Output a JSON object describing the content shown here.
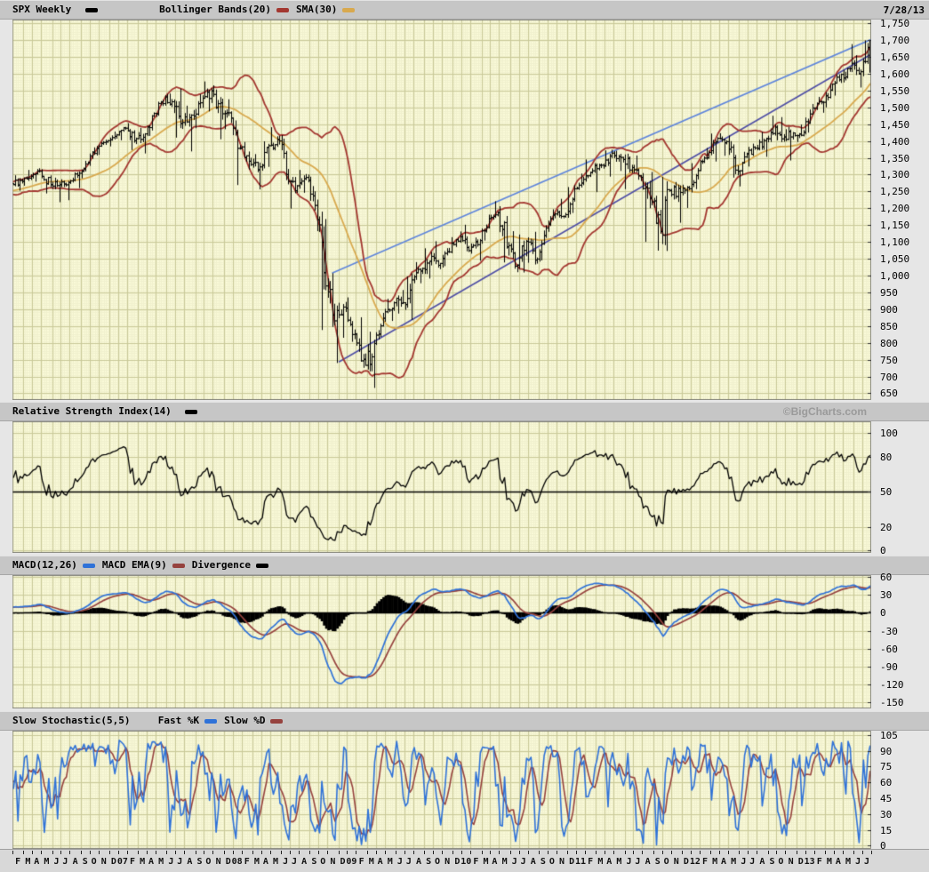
{
  "app": {
    "date_label": "7/28/13",
    "watermark": "©BigCharts.com"
  },
  "panel_headers": {
    "price": {
      "title": "SPX Weekly",
      "title_swatch_color": "#000000",
      "legend": [
        {
          "label": "Bollinger Bands(20)",
          "color": "#A33730"
        },
        {
          "label": "SMA(30)",
          "color": "#D8A94E"
        }
      ]
    },
    "rsi": {
      "title": "Relative Strength Index(14)",
      "swatch_color": "#000000"
    },
    "macd": {
      "legend": [
        {
          "label": "MACD(12,26)",
          "color": "#2F72D8"
        },
        {
          "label": "MACD EMA(9)",
          "color": "#96423E"
        },
        {
          "label": "Divergence",
          "color": "#000000"
        }
      ]
    },
    "stoch": {
      "title": "Slow Stochastic(5,5)",
      "legend": [
        {
          "label": "Fast %K",
          "color": "#2F72D8"
        },
        {
          "label": "Slow %D",
          "color": "#96423E"
        }
      ]
    }
  },
  "chart_data": [
    {
      "type": "ohlc",
      "panel": "price",
      "title": "SPX Weekly",
      "interval": "weekly",
      "ylim": [
        630,
        1761
      ],
      "yticks": [
        1750,
        1700,
        1650,
        1600,
        1550,
        1500,
        1450,
        1400,
        1350,
        1300,
        1250,
        1200,
        1150,
        1100,
        1050,
        1000,
        950,
        900,
        850,
        800,
        750,
        700,
        650
      ],
      "categories": [
        "F",
        "M",
        "A",
        "M",
        "J",
        "J",
        "A",
        "S",
        "O",
        "N",
        "D",
        "07",
        "F",
        "M",
        "A",
        "M",
        "J",
        "J",
        "A",
        "S",
        "O",
        "N",
        "D",
        "08",
        "F",
        "M",
        "A",
        "M",
        "J",
        "J",
        "A",
        "S",
        "O",
        "N",
        "D",
        "09",
        "F",
        "M",
        "A",
        "M",
        "J",
        "J",
        "A",
        "S",
        "O",
        "N",
        "D",
        "10",
        "F",
        "M",
        "A",
        "M",
        "J",
        "J",
        "A",
        "S",
        "O",
        "N",
        "D",
        "11",
        "F",
        "M",
        "A",
        "M",
        "J",
        "J",
        "A",
        "S",
        "O",
        "N",
        "D",
        "12",
        "F",
        "M",
        "A",
        "M",
        "J",
        "J",
        "A",
        "S",
        "O",
        "N",
        "D",
        "13",
        "F",
        "M",
        "A",
        "M",
        "J",
        "J"
      ],
      "monthly": {
        "close": [
          1280,
          1295,
          1310,
          1270,
          1270,
          1277,
          1304,
          1336,
          1378,
          1401,
          1418,
          1438,
          1407,
          1421,
          1482,
          1531,
          1503,
          1455,
          1474,
          1527,
          1549,
          1481,
          1468,
          1378,
          1330,
          1323,
          1386,
          1400,
          1280,
          1267,
          1283,
          1166,
          969,
          896,
          903,
          826,
          733,
          798,
          873,
          919,
          919,
          987,
          1021,
          1057,
          1036,
          1096,
          1115,
          1074,
          1104,
          1169,
          1187,
          1089,
          1031,
          1102,
          1049,
          1141,
          1183,
          1181,
          1258,
          1286,
          1327,
          1326,
          1364,
          1345,
          1321,
          1292,
          1219,
          1131,
          1253,
          1247,
          1258,
          1312,
          1366,
          1408,
          1398,
          1310,
          1362,
          1379,
          1407,
          1441,
          1412,
          1416,
          1426,
          1498,
          1515,
          1569,
          1598,
          1631,
          1606,
          1691
        ],
        "high": [
          1297,
          1313,
          1318,
          1315,
          1290,
          1281,
          1306,
          1340,
          1380,
          1403,
          1427,
          1441,
          1452,
          1438,
          1484,
          1535,
          1540,
          1555,
          1504,
          1538,
          1576,
          1552,
          1523,
          1447,
          1396,
          1360,
          1398,
          1440,
          1406,
          1292,
          1313,
          1265,
          1167,
          1006,
          918,
          934,
          875,
          832,
          888,
          930,
          956,
          996,
          1039,
          1080,
          1101,
          1113,
          1130,
          1150,
          1112,
          1180,
          1220,
          1205,
          1131,
          1121,
          1129,
          1148,
          1196,
          1227,
          1262,
          1302,
          1344,
          1332,
          1371,
          1370,
          1353,
          1356,
          1307,
          1230,
          1292,
          1277,
          1269,
          1333,
          1378,
          1421,
          1422,
          1415,
          1367,
          1391,
          1426,
          1474,
          1470,
          1434,
          1448,
          1509,
          1530,
          1570,
          1597,
          1687,
          1654,
          1698
        ],
        "low": [
          1253,
          1268,
          1280,
          1245,
          1219,
          1225,
          1261,
          1290,
          1327,
          1360,
          1385,
          1403,
          1374,
          1364,
          1416,
          1476,
          1484,
          1411,
          1370,
          1439,
          1489,
          1406,
          1436,
          1270,
          1316,
          1257,
          1324,
          1373,
          1272,
          1200,
          1247,
          1133,
          839,
          741,
          816,
          804,
          735,
          667,
          811,
          866,
          888,
          869,
          978,
          992,
          1020,
          1029,
          1086,
          1071,
          1045,
          1105,
          1170,
          1040,
          1011,
          1010,
          1039,
          1046,
          1131,
          1173,
          1187,
          1257,
          1294,
          1249,
          1295,
          1312,
          1258,
          1282,
          1101,
          1075,
          1074,
          1158,
          1202,
          1258,
          1337,
          1340,
          1357,
          1292,
          1266,
          1325,
          1354,
          1397,
          1403,
          1343,
          1398,
          1426,
          1485,
          1501,
          1536,
          1581,
          1560,
          1604
        ]
      },
      "overlays": [
        {
          "name": "Bollinger Bands(20)",
          "type": "bollinger",
          "period": 20,
          "stdev": 2,
          "color": "#A33730"
        },
        {
          "name": "SMA(30)",
          "type": "sma",
          "period": 30,
          "color": "#D8A94E"
        }
      ],
      "trendlines": [
        {
          "name": "upper-trendline",
          "color": "#5E85DC",
          "from": {
            "month": 33.5,
            "value": 1007
          },
          "to": {
            "month": 90,
            "value": 1702
          }
        },
        {
          "name": "lower-trendline",
          "color": "#4E4EA5",
          "from": {
            "month": 34.2,
            "value": 743
          },
          "to": {
            "month": 90,
            "value": 1658
          }
        }
      ],
      "bar_color": "#000000",
      "grid": {
        "y_step": 50,
        "x_major": "monthly",
        "x_minor": "weekly"
      }
    },
    {
      "type": "line",
      "panel": "rsi",
      "title": "Relative Strength Index(14)",
      "params": {
        "period": 14
      },
      "computed_from": "price.close",
      "color": "#000000",
      "ylim": [
        -2,
        110
      ],
      "yticks": [
        100,
        80,
        50,
        20,
        0
      ],
      "hline": {
        "value": 50,
        "color": "#000000"
      }
    },
    {
      "type": "line+histogram",
      "panel": "macd",
      "title": "MACD(12,26)",
      "params": {
        "fast": 12,
        "slow": 26,
        "signal": 9
      },
      "computed_from": "price.close",
      "series": [
        {
          "name": "MACD(12,26)",
          "color": "#2F72D8",
          "style": "line"
        },
        {
          "name": "MACD EMA(9)",
          "color": "#96423E",
          "style": "line"
        },
        {
          "name": "Divergence",
          "color": "#000000",
          "style": "histogram"
        }
      ],
      "ylim": [
        -160,
        63
      ],
      "yticks": [
        60,
        30,
        0,
        -30,
        -60,
        -90,
        -120,
        -150
      ],
      "hline": {
        "value": 0,
        "color": "#000000"
      }
    },
    {
      "type": "line",
      "panel": "stochastic",
      "title": "Slow Stochastic(5,5)",
      "params": {
        "k": 5,
        "d": 5
      },
      "computed_from": "price.high/low/close",
      "series": [
        {
          "name": "Fast %K",
          "color": "#2F72D8"
        },
        {
          "name": "Slow %D",
          "color": "#96423E"
        }
      ],
      "ylim": [
        -3,
        109
      ],
      "yticks": [
        105,
        90,
        75,
        60,
        45,
        30,
        15,
        0
      ]
    }
  ]
}
